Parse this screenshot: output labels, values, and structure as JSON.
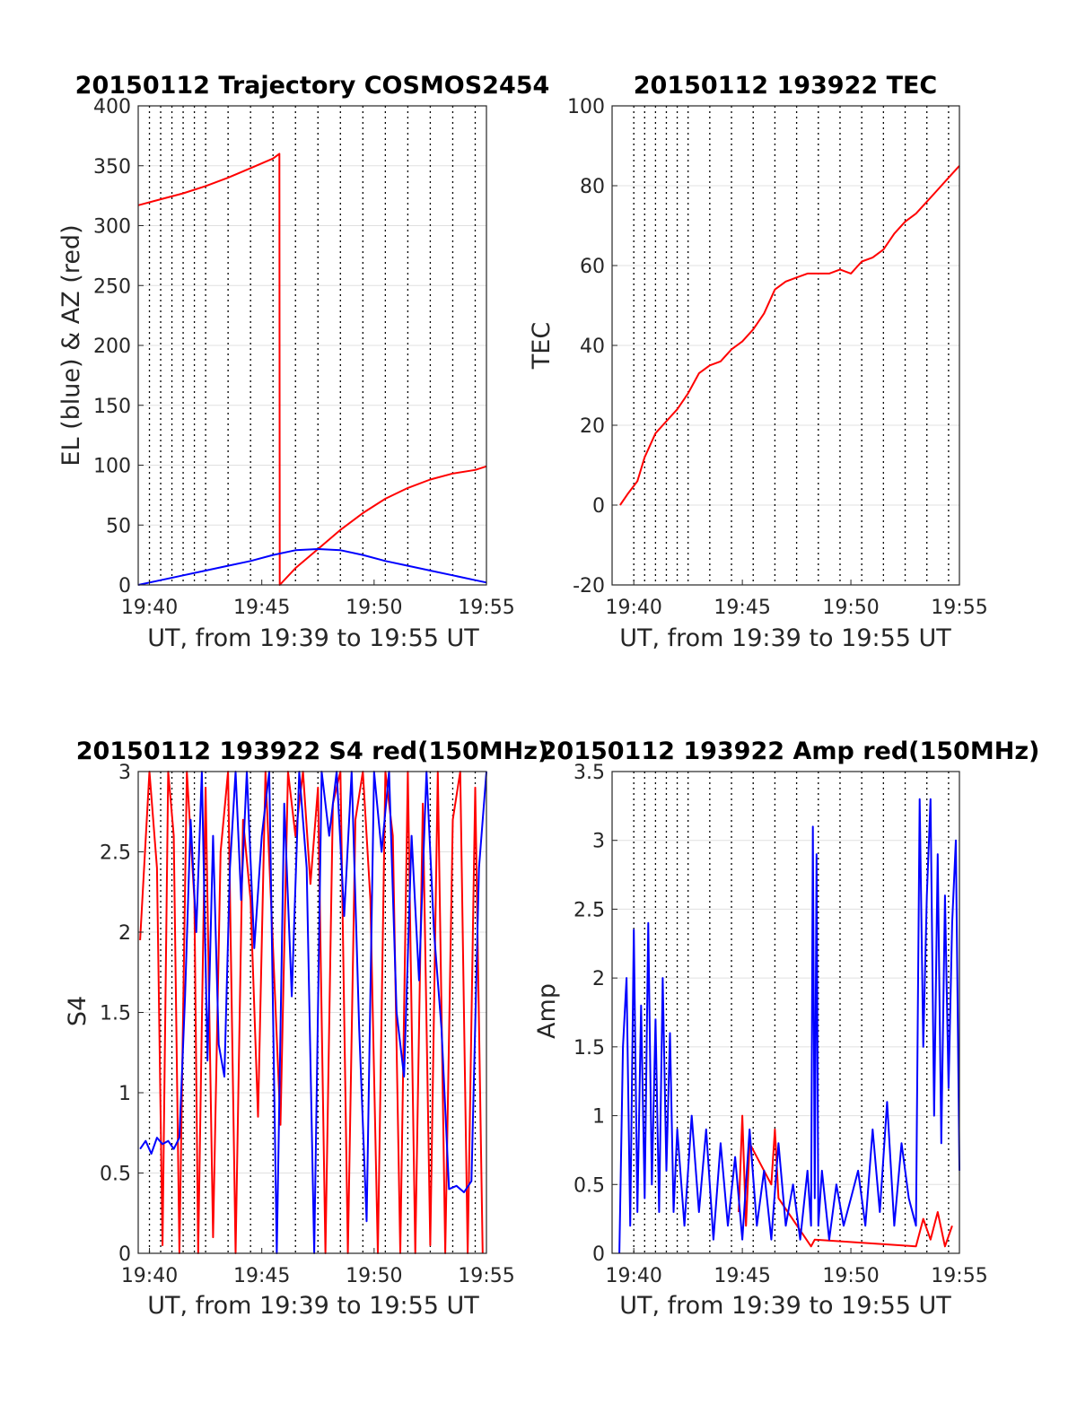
{
  "chart_data": [
    {
      "id": "trajectory",
      "type": "line",
      "title": "20150112 Trajectory COSMOS2454",
      "xlabel": "UT, from 19:39 to 19:55 UT",
      "ylabel": "EL (blue) & AZ (red)",
      "xlim": [
        "19:39:30",
        "19:55:00"
      ],
      "ylim": [
        0,
        400
      ],
      "xticks": [
        "19:40",
        "19:45",
        "19:50",
        "19:55"
      ],
      "yticks": [
        0,
        50,
        100,
        150,
        200,
        250,
        300,
        350,
        400
      ],
      "grid": "y solid; x dotted vertical lines",
      "series": [
        {
          "color": "#ff0000",
          "x": [
            "19:39:30",
            "19:40:30",
            "19:41:30",
            "19:42:30",
            "19:43:30",
            "19:44:30",
            "19:45:30",
            "19:45:47",
            "19:45:48",
            "19:46:30",
            "19:47:30",
            "19:48:30",
            "19:49:30",
            "19:50:30",
            "19:51:30",
            "19:52:30",
            "19:53:30",
            "19:54:30",
            "19:55:00"
          ],
          "values": [
            317,
            322,
            327,
            333,
            340,
            348,
            356,
            360,
            0,
            14,
            30,
            46,
            60,
            72,
            81,
            88,
            93,
            96,
            99
          ]
        },
        {
          "color": "#0000ff",
          "x": [
            "19:39:30",
            "19:40:30",
            "19:41:30",
            "19:42:30",
            "19:43:30",
            "19:44:30",
            "19:45:30",
            "19:46:30",
            "19:47:30",
            "19:48:30",
            "19:49:30",
            "19:50:30",
            "19:51:30",
            "19:52:30",
            "19:53:30",
            "19:54:30",
            "19:55:00"
          ],
          "values": [
            0,
            4,
            8,
            12,
            16,
            20,
            25,
            29,
            30,
            29,
            25,
            20,
            16,
            12,
            8,
            4,
            2
          ]
        }
      ]
    },
    {
      "id": "tec",
      "type": "line",
      "title": "20150112 193922 TEC",
      "xlabel": "UT, from 19:39 to 19:55 UT",
      "ylabel": "TEC",
      "xlim": [
        "19:39:00",
        "19:55:00"
      ],
      "ylim": [
        -20,
        100
      ],
      "xticks": [
        "19:40",
        "19:45",
        "19:50",
        "19:55"
      ],
      "yticks": [
        -20,
        0,
        20,
        40,
        60,
        80,
        100
      ],
      "grid": "y solid; x dotted vertical lines",
      "series": [
        {
          "color": "#ff0000",
          "x": [
            "19:39:22",
            "19:39:45",
            "19:40:10",
            "19:40:30",
            "19:41:00",
            "19:41:30",
            "19:42:00",
            "19:42:30",
            "19:43:00",
            "19:43:30",
            "19:44:00",
            "19:44:30",
            "19:45:00",
            "19:45:30",
            "19:46:00",
            "19:46:30",
            "19:47:00",
            "19:47:30",
            "19:48:00",
            "19:48:30",
            "19:49:00",
            "19:49:30",
            "19:50:00",
            "19:50:30",
            "19:51:00",
            "19:51:30",
            "19:52:00",
            "19:52:30",
            "19:53:00",
            "19:53:30",
            "19:54:00",
            "19:54:30",
            "19:55:00"
          ],
          "values": [
            0,
            3,
            6,
            12,
            18,
            21,
            24,
            28,
            33,
            35,
            36,
            39,
            41,
            44,
            48,
            54,
            56,
            57,
            58,
            58,
            58,
            59,
            58,
            61,
            62,
            64,
            68,
            71,
            73,
            76,
            79,
            82,
            85
          ]
        }
      ]
    },
    {
      "id": "s4",
      "type": "line",
      "title": "20150112 193922 S4 red(150MHz)",
      "xlabel": "UT, from 19:39 to 19:55 UT",
      "ylabel": "S4",
      "xlim": [
        "19:39:30",
        "19:55:00"
      ],
      "ylim": [
        0,
        3
      ],
      "xticks": [
        "19:40",
        "19:45",
        "19:50",
        "19:55"
      ],
      "yticks": [
        0,
        0.5,
        1,
        1.5,
        2,
        2.5,
        3
      ],
      "grid": "y solid; x dotted vertical lines",
      "series": [
        {
          "color": "#ff0000",
          "x": [
            "19:39:35",
            "19:40:00",
            "19:40:20",
            "19:40:35",
            "19:40:50",
            "19:41:05",
            "19:41:20",
            "19:41:40",
            "19:42:00",
            "19:42:10",
            "19:42:30",
            "19:42:50",
            "19:43:10",
            "19:43:30",
            "19:43:50",
            "19:44:10",
            "19:44:30",
            "19:44:50",
            "19:45:10",
            "19:45:30",
            "19:45:50",
            "19:46:10",
            "19:46:30",
            "19:46:50",
            "19:47:10",
            "19:47:30",
            "19:47:50",
            "19:48:10",
            "19:48:30",
            "19:48:50",
            "19:49:10",
            "19:49:30",
            "19:49:50",
            "19:50:10",
            "19:50:30",
            "19:50:50",
            "19:51:10",
            "19:51:30",
            "19:51:50",
            "19:52:10",
            "19:52:30",
            "19:52:50",
            "19:53:10",
            "19:53:30",
            "19:53:50",
            "19:54:10",
            "19:54:30",
            "19:54:50"
          ],
          "values": [
            1.95,
            3,
            2.4,
            0.05,
            3,
            2.6,
            0,
            3,
            2.2,
            0,
            2.9,
            0.1,
            2.5,
            3,
            0,
            2.7,
            2.2,
            0.85,
            3,
            1.9,
            0.8,
            3,
            2.6,
            3,
            2.3,
            2.9,
            0,
            2.8,
            3,
            0,
            2.7,
            3,
            2.2,
            0,
            3,
            2.6,
            0,
            3,
            0,
            2.8,
            0.05,
            3,
            0,
            2.7,
            3,
            0,
            2.9,
            0
          ]
        },
        {
          "color": "#0000ff",
          "x": [
            "19:39:35",
            "19:39:50",
            "19:40:05",
            "19:40:20",
            "19:40:35",
            "19:40:50",
            "19:41:05",
            "19:41:20",
            "19:41:35",
            "19:41:50",
            "19:42:05",
            "19:42:20",
            "19:42:35",
            "19:42:50",
            "19:43:05",
            "19:43:20",
            "19:43:35",
            "19:43:50",
            "19:44:05",
            "19:44:20",
            "19:44:40",
            "19:45:00",
            "19:45:20",
            "19:45:40",
            "19:46:00",
            "19:46:20",
            "19:46:40",
            "19:47:00",
            "19:47:20",
            "19:47:40",
            "19:48:00",
            "19:48:20",
            "19:48:40",
            "19:49:00",
            "19:49:20",
            "19:49:40",
            "19:50:00",
            "19:50:20",
            "19:50:40",
            "19:51:00",
            "19:51:20",
            "19:51:40",
            "19:52:00",
            "19:52:20",
            "19:52:40",
            "19:53:00",
            "19:53:20",
            "19:53:40",
            "19:54:00",
            "19:54:20",
            "19:54:40",
            "19:55:00"
          ],
          "values": [
            0.65,
            0.7,
            0.62,
            0.72,
            0.68,
            0.7,
            0.65,
            0.72,
            1.6,
            2.7,
            2.0,
            3,
            1.2,
            2.6,
            1.3,
            1.1,
            2.4,
            3,
            2.2,
            3,
            1.9,
            2.6,
            3,
            0,
            2.8,
            1.6,
            3,
            2.4,
            0,
            3,
            2.6,
            3,
            2.1,
            3,
            1.4,
            0.2,
            3,
            2.5,
            3,
            1.5,
            1.1,
            2.6,
            1.7,
            3,
            2.0,
            1.4,
            0.4,
            0.42,
            0.38,
            0.45,
            2.4,
            3
          ]
        }
      ]
    },
    {
      "id": "amp",
      "type": "line",
      "title": "20150112 193922 Amp red(150MHz)",
      "xlabel": "UT, from 19:39 to 19:55 UT",
      "ylabel": "Amp",
      "xlim": [
        "19:39:00",
        "19:55:00"
      ],
      "ylim": [
        0,
        3.5
      ],
      "xticks": [
        "19:40",
        "19:45",
        "19:50",
        "19:55"
      ],
      "yticks": [
        0,
        0.5,
        1,
        1.5,
        2,
        2.5,
        3,
        3.5
      ],
      "grid": "y solid; x dotted vertical lines",
      "series": [
        {
          "color": "#ff0000",
          "x": [
            "19:44:50",
            "19:45:00",
            "19:45:10",
            "19:45:20",
            "19:46:20",
            "19:46:30",
            "19:46:40",
            "19:48:10",
            "19:48:20",
            "19:53:00",
            "19:53:20",
            "19:53:40",
            "19:54:00",
            "19:54:20",
            "19:54:40"
          ],
          "values": [
            0.3,
            1.0,
            0.2,
            0.8,
            0.5,
            0.9,
            0.4,
            0.05,
            0.1,
            0.05,
            0.25,
            0.1,
            0.3,
            0.05,
            0.2
          ]
        },
        {
          "color": "#0000ff",
          "x": [
            "19:39:20",
            "19:39:30",
            "19:39:40",
            "19:39:50",
            "19:40:00",
            "19:40:10",
            "19:40:20",
            "19:40:30",
            "19:40:40",
            "19:40:50",
            "19:41:00",
            "19:41:10",
            "19:41:20",
            "19:41:30",
            "19:41:40",
            "19:41:50",
            "19:42:00",
            "19:42:20",
            "19:42:40",
            "19:43:00",
            "19:43:20",
            "19:43:40",
            "19:44:00",
            "19:44:20",
            "19:44:40",
            "19:45:00",
            "19:45:20",
            "19:45:40",
            "19:46:00",
            "19:46:20",
            "19:46:40",
            "19:47:00",
            "19:47:20",
            "19:47:40",
            "19:48:00",
            "19:48:10",
            "19:48:15",
            "19:48:20",
            "19:48:25",
            "19:48:30",
            "19:48:40",
            "19:49:00",
            "19:49:20",
            "19:49:40",
            "19:50:00",
            "19:50:20",
            "19:50:40",
            "19:51:00",
            "19:51:20",
            "19:51:40",
            "19:52:00",
            "19:52:20",
            "19:52:40",
            "19:53:00",
            "19:53:10",
            "19:53:20",
            "19:53:30",
            "19:53:40",
            "19:53:50",
            "19:54:00",
            "19:54:10",
            "19:54:20",
            "19:54:30",
            "19:54:40",
            "19:54:50",
            "19:55:00"
          ],
          "values": [
            0,
            1.5,
            2.0,
            0.2,
            2.35,
            0.3,
            1.8,
            0.4,
            2.4,
            0.5,
            1.7,
            0.3,
            2.0,
            0.6,
            1.6,
            0.3,
            0.9,
            0.2,
            1.0,
            0.3,
            0.9,
            0.1,
            0.8,
            0.2,
            0.7,
            0.1,
            0.9,
            0.2,
            0.6,
            0.1,
            0.8,
            0.2,
            0.5,
            0.1,
            0.6,
            0.2,
            3.1,
            0.4,
            2.9,
            0.2,
            0.6,
            0.1,
            0.5,
            0.2,
            0.4,
            0.6,
            0.2,
            0.9,
            0.3,
            1.1,
            0.2,
            0.8,
            0.4,
            0.2,
            3.3,
            1.5,
            2.6,
            3.3,
            1.0,
            2.9,
            0.8,
            2.6,
            1.2,
            2.4,
            3.0,
            0.6
          ]
        }
      ]
    }
  ]
}
